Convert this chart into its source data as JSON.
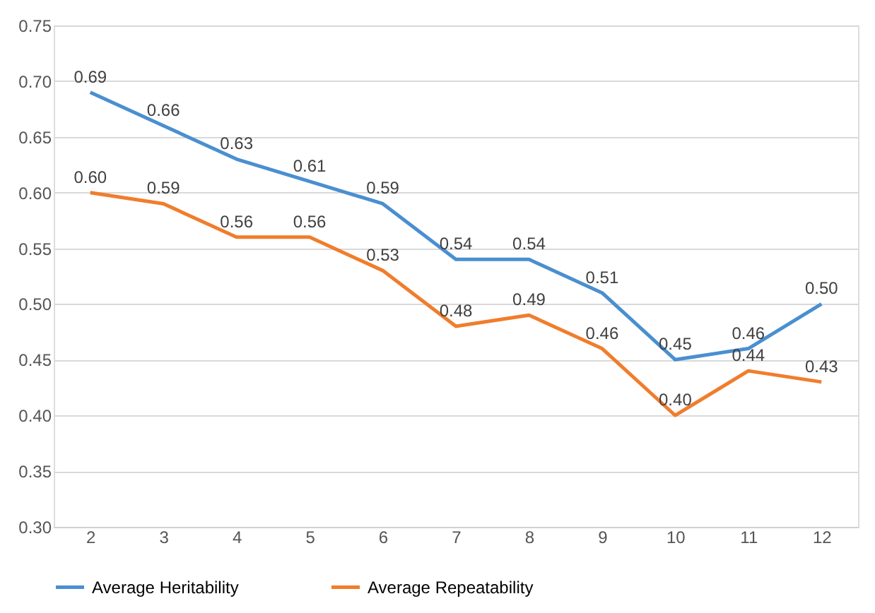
{
  "chart_data": {
    "type": "line",
    "categories": [
      "2",
      "3",
      "4",
      "5",
      "6",
      "7",
      "8",
      "9",
      "10",
      "11",
      "12"
    ],
    "series": [
      {
        "name": "Average Heritability",
        "color": "#4a8fd0",
        "values": [
          0.69,
          0.66,
          0.63,
          0.61,
          0.59,
          0.54,
          0.54,
          0.51,
          0.45,
          0.46,
          0.5
        ],
        "value_labels": [
          "0.69",
          "0.66",
          "0.63",
          "0.61",
          "0.59",
          "0.54",
          "0.54",
          "0.51",
          "0.45",
          "0.46",
          "0.50"
        ]
      },
      {
        "name": "Average Repeatability",
        "color": "#f07d2c",
        "values": [
          0.6,
          0.59,
          0.56,
          0.56,
          0.53,
          0.48,
          0.49,
          0.46,
          0.4,
          0.44,
          0.43
        ],
        "value_labels": [
          "0.60",
          "0.59",
          "0.56",
          "0.56",
          "0.53",
          "0.48",
          "0.49",
          "0.46",
          "0.40",
          "0.44",
          "0.43"
        ]
      }
    ],
    "ylim": [
      0.3,
      0.75
    ],
    "yticks": [
      {
        "value": 0.3,
        "label": "0.30"
      },
      {
        "value": 0.35,
        "label": "0.35"
      },
      {
        "value": 0.4,
        "label": "0.40"
      },
      {
        "value": 0.45,
        "label": "0.45"
      },
      {
        "value": 0.5,
        "label": "0.50"
      },
      {
        "value": 0.55,
        "label": "0.55"
      },
      {
        "value": 0.6,
        "label": "0.60"
      },
      {
        "value": 0.65,
        "label": "0.65"
      },
      {
        "value": 0.7,
        "label": "0.70"
      },
      {
        "value": 0.75,
        "label": "0.75"
      }
    ],
    "grid": "y",
    "legend": "bottom",
    "marker": "none",
    "line_style": "solid"
  }
}
